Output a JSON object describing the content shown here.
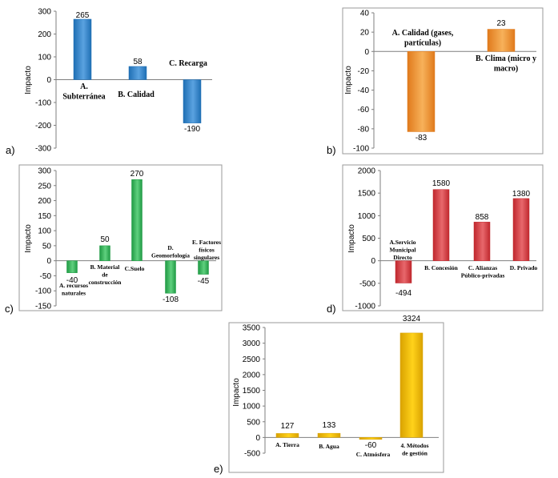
{
  "chart_data": [
    {
      "id": "a",
      "type": "bar",
      "panel_label": "a)",
      "ylabel": "Impacto",
      "ylim": [
        -300,
        300
      ],
      "ticks": [
        "300",
        "200",
        "100",
        "0",
        "-100",
        "-200",
        "-300"
      ],
      "tick_values": [
        300,
        200,
        100,
        0,
        -100,
        -200,
        -300
      ],
      "categories": [
        "A. Subterránea",
        "B. Calidad",
        "C. Recarga"
      ],
      "values": [
        265,
        58,
        -190
      ],
      "data_labels": [
        "265",
        "58",
        "-190"
      ],
      "color": "#1f6fb4",
      "color_light": "#5aa2e0",
      "border": false
    },
    {
      "id": "b",
      "type": "bar",
      "panel_label": "b)",
      "ylabel": "Impacto",
      "ylim": [
        -100,
        40
      ],
      "ticks": [
        "40",
        "20",
        "0",
        "-20",
        "-40",
        "-60",
        "-80",
        "-100"
      ],
      "tick_values": [
        40,
        20,
        0,
        -20,
        -40,
        -60,
        -80,
        -100
      ],
      "categories": [
        "A. Calidad (gases, partículas)",
        "B. Clima (micro y macro)"
      ],
      "values": [
        -83,
        23
      ],
      "data_labels": [
        "-83",
        "23"
      ],
      "color": "#e07a1c",
      "color_light": "#f7b15a",
      "border": false
    },
    {
      "id": "c",
      "type": "bar",
      "panel_label": "c)",
      "ylabel": "Impacto",
      "ylim": [
        -150,
        300
      ],
      "ticks": [
        "300",
        "250",
        "200",
        "150",
        "100",
        "50",
        "0",
        "-50",
        "-100",
        "-150"
      ],
      "tick_values": [
        300,
        250,
        200,
        150,
        100,
        50,
        0,
        -50,
        -100,
        -150
      ],
      "categories": [
        "A. recursos naturales",
        "B. Material de construcción",
        "C. Suelo",
        "D. Geomorfología",
        "E. Factores físicos singulares"
      ],
      "values": [
        -40,
        50,
        270,
        -108,
        -45
      ],
      "data_labels": [
        "-40",
        "50",
        "270",
        "-108",
        "-45"
      ],
      "color": "#1f9a44",
      "color_light": "#5fd07e",
      "border": true
    },
    {
      "id": "d",
      "type": "bar",
      "panel_label": "d)",
      "ylabel": "Impacto",
      "ylim": [
        -1000,
        2000
      ],
      "ticks": [
        "2000",
        "1500",
        "1000",
        "500",
        "0",
        "-500",
        "-1000"
      ],
      "tick_values": [
        2000,
        1500,
        1000,
        500,
        0,
        -500,
        -1000
      ],
      "categories": [
        "A.Servicio Municipal Directo",
        "B. Concesión",
        "C. Alianzas Público-privadas",
        "D. Privado"
      ],
      "values": [
        -494,
        1580,
        858,
        1380
      ],
      "data_labels": [
        "-494",
        "1580",
        "858",
        "1380"
      ],
      "color": "#c0282e",
      "color_light": "#e8686c",
      "border": false
    },
    {
      "id": "e",
      "type": "bar",
      "panel_label": "e)",
      "ylabel": "Impacto",
      "ylim": [
        -500,
        3500
      ],
      "ticks": [
        "3500",
        "3000",
        "2500",
        "2000",
        "1500",
        "1000",
        "500",
        "0",
        "-500"
      ],
      "tick_values": [
        3500,
        3000,
        2500,
        2000,
        1500,
        1000,
        500,
        0,
        -500
      ],
      "categories": [
        "A. Tierra",
        "B. Agua",
        "C. Atmósfera",
        "4. Métodos de gestión"
      ],
      "values": [
        127,
        133,
        -60,
        3324
      ],
      "data_labels": [
        "127",
        "133",
        "-60",
        "3324"
      ],
      "color": "#d9a200",
      "color_light": "#ffd21a",
      "border": false
    }
  ]
}
